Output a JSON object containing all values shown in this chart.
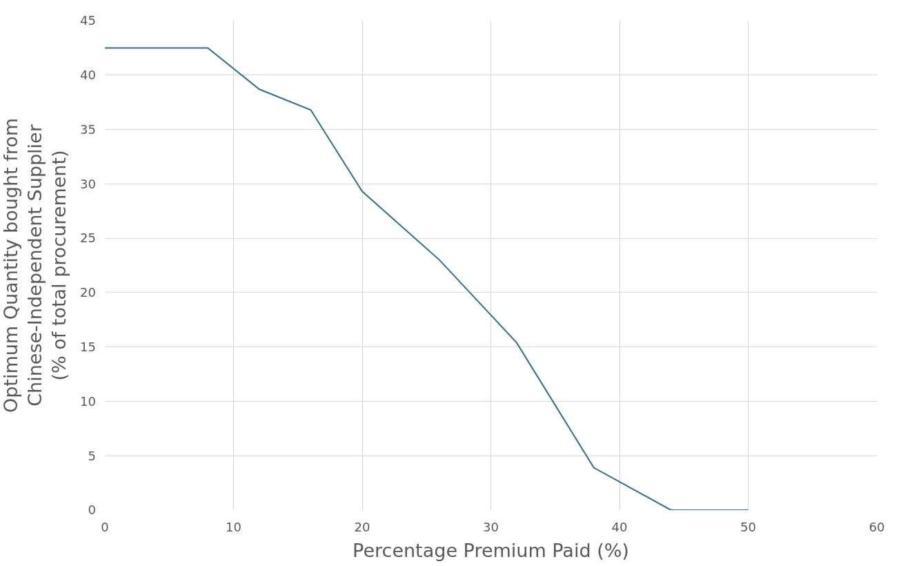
{
  "chart_data": {
    "type": "line",
    "xlabel": "Percentage Premium Paid (%)",
    "ylabel": "Optimum Quantity bought from\nChinese-Independent Supplier\n(% of total procurement)",
    "x": [
      0,
      8,
      12,
      16,
      20,
      26,
      32,
      38,
      44,
      50
    ],
    "series": [
      {
        "color": "#2e6e8e",
        "values": [
          42.5,
          42.5,
          38.7,
          36.8,
          29.3,
          23.0,
          15.4,
          3.9,
          0,
          0
        ]
      }
    ],
    "xlim": [
      0,
      60
    ],
    "xticks": [
      0,
      10,
      20,
      30,
      40,
      50,
      60
    ],
    "ylim": [
      0,
      45
    ],
    "yticks": [
      0,
      5,
      10,
      15,
      20,
      25,
      30,
      35,
      40,
      45
    ],
    "grid": true,
    "marker": "none",
    "line_style": "solid"
  }
}
